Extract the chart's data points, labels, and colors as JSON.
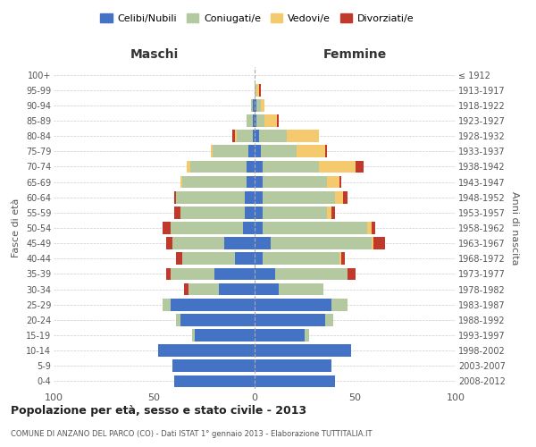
{
  "age_groups": [
    "0-4",
    "5-9",
    "10-14",
    "15-19",
    "20-24",
    "25-29",
    "30-34",
    "35-39",
    "40-44",
    "45-49",
    "50-54",
    "55-59",
    "60-64",
    "65-69",
    "70-74",
    "75-79",
    "80-84",
    "85-89",
    "90-94",
    "95-99",
    "100+"
  ],
  "birth_years": [
    "2008-2012",
    "2003-2007",
    "1998-2002",
    "1993-1997",
    "1988-1992",
    "1983-1987",
    "1978-1982",
    "1973-1977",
    "1968-1972",
    "1963-1967",
    "1958-1962",
    "1953-1957",
    "1948-1952",
    "1943-1947",
    "1938-1942",
    "1933-1937",
    "1928-1932",
    "1923-1927",
    "1918-1922",
    "1913-1917",
    "≤ 1912"
  ],
  "colors": {
    "celibi": "#4472C4",
    "coniugati": "#b5c9a0",
    "vedovi": "#f5c96e",
    "divorziati": "#c0392b"
  },
  "maschi": {
    "celibi": [
      40,
      41,
      48,
      30,
      37,
      42,
      18,
      20,
      10,
      15,
      6,
      5,
      5,
      4,
      4,
      3,
      1,
      1,
      1,
      0,
      0
    ],
    "coniugati": [
      0,
      0,
      0,
      1,
      2,
      4,
      15,
      22,
      26,
      26,
      36,
      32,
      34,
      32,
      28,
      18,
      8,
      3,
      1,
      0,
      0
    ],
    "vedovi": [
      0,
      0,
      0,
      0,
      0,
      0,
      0,
      0,
      0,
      0,
      0,
      0,
      0,
      1,
      2,
      1,
      1,
      0,
      0,
      0,
      0
    ],
    "divorziati": [
      0,
      0,
      0,
      0,
      0,
      0,
      2,
      2,
      3,
      3,
      4,
      3,
      1,
      0,
      0,
      0,
      1,
      0,
      0,
      0,
      0
    ]
  },
  "femmine": {
    "celibi": [
      40,
      38,
      48,
      25,
      35,
      38,
      12,
      10,
      4,
      8,
      4,
      4,
      4,
      4,
      4,
      3,
      2,
      1,
      1,
      0,
      0
    ],
    "coniugati": [
      0,
      0,
      0,
      2,
      4,
      8,
      22,
      36,
      38,
      50,
      52,
      32,
      36,
      32,
      28,
      18,
      14,
      4,
      2,
      1,
      0
    ],
    "vedovi": [
      0,
      0,
      0,
      0,
      0,
      0,
      0,
      0,
      1,
      1,
      2,
      2,
      4,
      6,
      18,
      14,
      16,
      6,
      2,
      1,
      0
    ],
    "divorziati": [
      0,
      0,
      0,
      0,
      0,
      0,
      0,
      4,
      2,
      6,
      2,
      2,
      2,
      1,
      4,
      1,
      0,
      1,
      0,
      1,
      0
    ]
  },
  "xlim": 100,
  "title": "Popolazione per età, sesso e stato civile - 2013",
  "subtitle": "COMUNE DI ANZANO DEL PARCO (CO) - Dati ISTAT 1° gennaio 2013 - Elaborazione TUTTITALIA.IT",
  "ylabel_left": "Fasce di età",
  "ylabel_right": "Anni di nascita",
  "xlabel_left": "Maschi",
  "xlabel_right": "Femmine",
  "legend_labels": [
    "Celibi/Nubili",
    "Coniugati/e",
    "Vedovi/e",
    "Divorziati/e"
  ]
}
